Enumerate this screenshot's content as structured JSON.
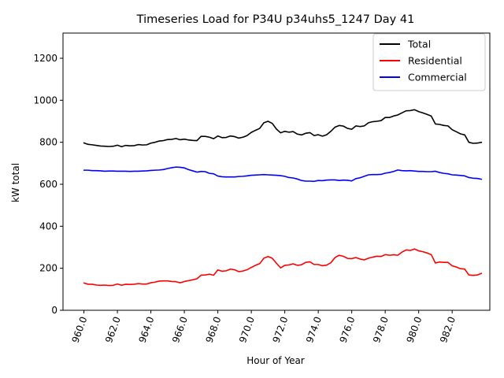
{
  "chart_data": {
    "type": "line",
    "title": "Timeseries Load for P34U p34uhs5_1247  Day 41",
    "xlabel": "Hour of Year",
    "ylabel": "kW total",
    "xlim": [
      958.75,
      984.25
    ],
    "ylim": [
      0,
      1320
    ],
    "xticks": [
      960,
      962,
      964,
      966,
      968,
      970,
      972,
      974,
      976,
      978,
      980,
      982
    ],
    "xtick_labels": [
      "960.0",
      "962.0",
      "964.0",
      "966.0",
      "968.0",
      "970.0",
      "972.0",
      "974.0",
      "976.0",
      "978.0",
      "980.0",
      "982.0"
    ],
    "yticks": [
      0,
      200,
      400,
      600,
      800,
      1000,
      1200
    ],
    "ytick_labels": [
      "0",
      "200",
      "400",
      "600",
      "800",
      "1000",
      "1200"
    ],
    "grid": false,
    "legend": "top-right",
    "x": [
      960.0,
      960.25,
      960.5,
      960.75,
      961.0,
      961.25,
      961.5,
      961.75,
      962.0,
      962.25,
      962.5,
      962.75,
      963.0,
      963.25,
      963.5,
      963.75,
      964.0,
      964.25,
      964.5,
      964.75,
      965.0,
      965.25,
      965.5,
      965.75,
      966.0,
      966.25,
      966.5,
      966.75,
      967.0,
      967.25,
      967.5,
      967.75,
      968.0,
      968.25,
      968.5,
      968.75,
      969.0,
      969.25,
      969.5,
      969.75,
      970.0,
      970.25,
      970.5,
      970.75,
      971.0,
      971.25,
      971.5,
      971.75,
      972.0,
      972.25,
      972.5,
      972.75,
      973.0,
      973.25,
      973.5,
      973.75,
      974.0,
      974.25,
      974.5,
      974.75,
      975.0,
      975.25,
      975.5,
      975.75,
      976.0,
      976.25,
      976.5,
      976.75,
      977.0,
      977.25,
      977.5,
      977.75,
      978.0,
      978.25,
      978.5,
      978.75,
      979.0,
      979.25,
      979.5,
      979.75,
      980.0,
      980.25,
      980.5,
      980.75,
      981.0,
      981.25,
      981.5,
      981.75,
      982.0,
      982.25,
      982.5,
      982.75,
      983.0,
      983.25,
      983.5,
      983.75
    ],
    "series": [
      {
        "name": "Total",
        "color": "#000000",
        "values": [
          797,
          790,
          788,
          785,
          782,
          781,
          780,
          781,
          786,
          779,
          785,
          783,
          784,
          789,
          787,
          788,
          796,
          800,
          806,
          808,
          813,
          814,
          818,
          812,
          815,
          811,
          809,
          808,
          828,
          828,
          824,
          817,
          830,
          822,
          823,
          830,
          827,
          820,
          824,
          832,
          847,
          857,
          866,
          893,
          900,
          890,
          863,
          845,
          852,
          848,
          851,
          839,
          835,
          843,
          846,
          832,
          836,
          829,
          836,
          852,
          872,
          880,
          877,
          866,
          862,
          878,
          875,
          878,
          893,
          898,
          900,
          903,
          918,
          918,
          925,
          930,
          940,
          950,
          951,
          955,
          946,
          940,
          933,
          925,
          887,
          885,
          880,
          878,
          860,
          850,
          840,
          835,
          800,
          795,
          796,
          800
        ]
      },
      {
        "name": "Residential",
        "color": "#ff0000",
        "values": [
          130,
          124,
          124,
          120,
          119,
          120,
          118,
          119,
          125,
          119,
          124,
          123,
          124,
          127,
          125,
          125,
          131,
          134,
          139,
          140,
          140,
          137,
          136,
          131,
          137,
          141,
          145,
          150,
          167,
          168,
          172,
          167,
          192,
          186,
          188,
          196,
          193,
          184,
          187,
          193,
          204,
          214,
          222,
          248,
          256,
          248,
          224,
          202,
          214,
          216,
          221,
          214,
          217,
          228,
          231,
          218,
          218,
          212,
          215,
          226,
          251,
          262,
          257,
          247,
          246,
          251,
          244,
          240,
          248,
          253,
          257,
          256,
          265,
          262,
          264,
          262,
          277,
          287,
          285,
          292,
          283,
          279,
          273,
          265,
          225,
          230,
          228,
          228,
          212,
          206,
          198,
          196,
          168,
          166,
          168,
          176
        ]
      },
      {
        "name": "Commercial",
        "color": "#0000ff",
        "values": [
          667,
          667,
          665,
          665,
          664,
          662,
          663,
          663,
          662,
          662,
          662,
          661,
          662,
          662,
          663,
          664,
          666,
          667,
          668,
          670,
          675,
          679,
          682,
          681,
          678,
          670,
          664,
          658,
          661,
          660,
          652,
          650,
          639,
          636,
          635,
          635,
          635,
          637,
          638,
          640,
          643,
          644,
          645,
          646,
          645,
          644,
          643,
          641,
          638,
          632,
          630,
          625,
          618,
          615,
          615,
          614,
          618,
          617,
          620,
          621,
          621,
          618,
          620,
          619,
          616,
          627,
          631,
          638,
          645,
          646,
          646,
          647,
          653,
          656,
          661,
          668,
          665,
          664,
          665,
          663,
          661,
          661,
          660,
          660,
          662,
          656,
          652,
          650,
          645,
          644,
          642,
          640,
          632,
          629,
          628,
          624
        ]
      }
    ]
  }
}
